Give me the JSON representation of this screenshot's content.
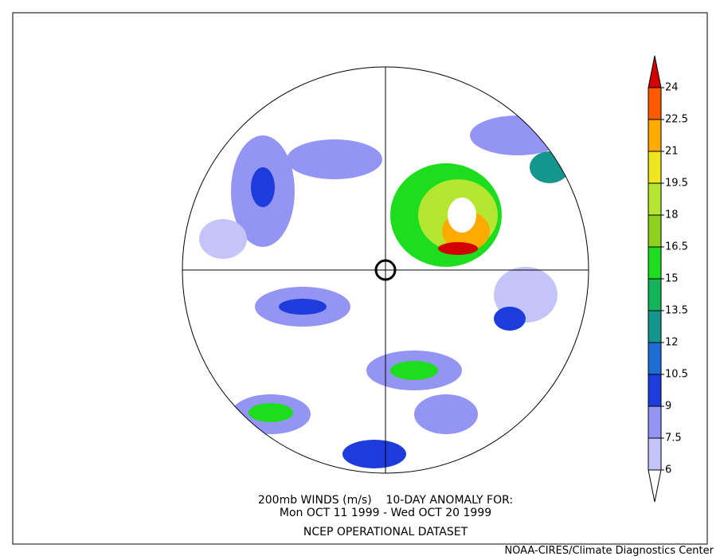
{
  "caption": [
    "200mb WINDS (m/s)    10-DAY ANOMALY FOR:",
    "Mon OCT 11 1999 - Wed OCT 20 1999",
    "NCEP OPERATIONAL DATASET"
  ],
  "credit": "NOAA-CIRES/Climate Diagnostics Center",
  "colorbar": {
    "ticks": [
      6,
      7.5,
      9,
      10.5,
      12,
      13.5,
      15,
      16.5,
      18,
      19.5,
      21,
      22.5,
      24
    ],
    "colors": [
      "#ffffff",
      "#c4c4fa",
      "#9494f4",
      "#1e3cdc",
      "#1c6ed4",
      "#14968c",
      "#14b45a",
      "#1edc1e",
      "#8cd21e",
      "#b4e632",
      "#f0e61e",
      "#ffaa00",
      "#ff5a00",
      "#d20000"
    ]
  }
}
